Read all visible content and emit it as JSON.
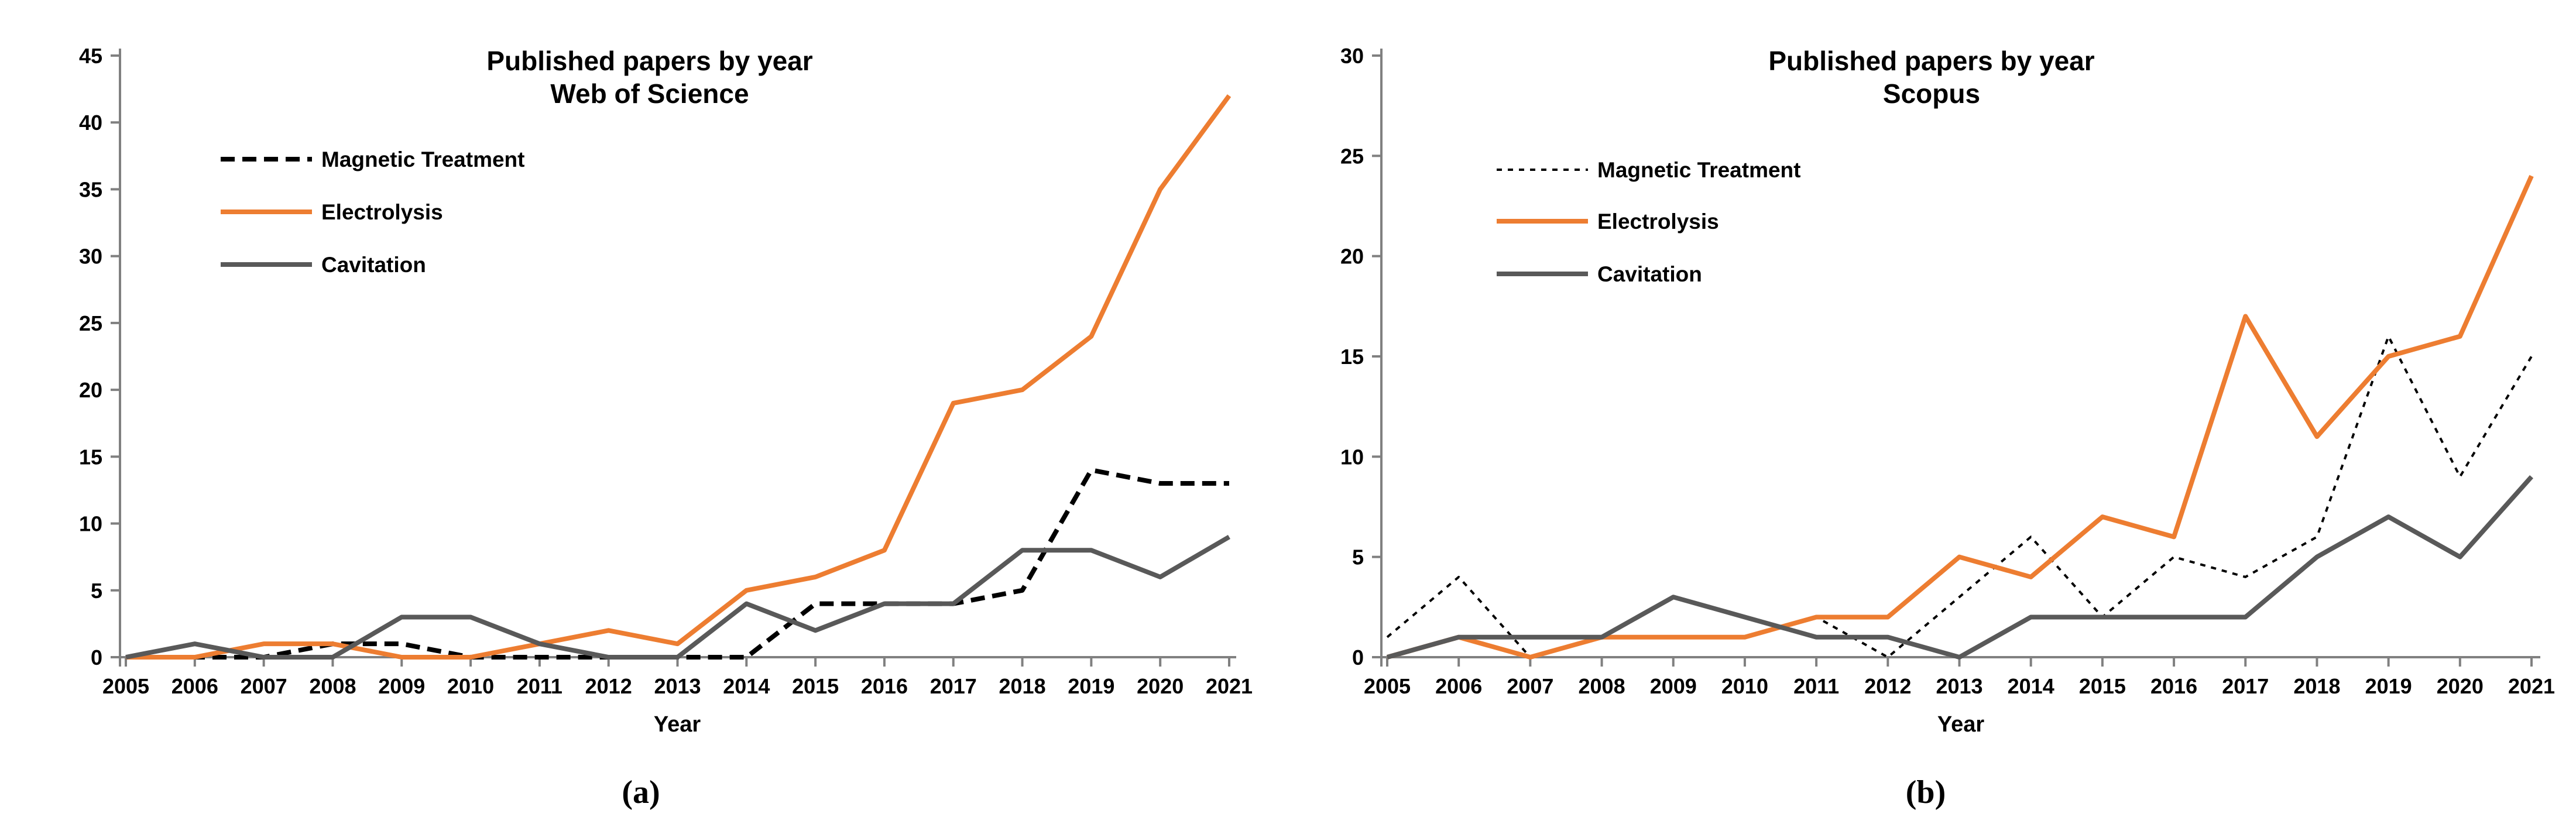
{
  "figure": {
    "background": "#FFFFFF",
    "text_color": "#000000",
    "axis_color": "#808080"
  },
  "captions": {
    "a": "(a)",
    "b": "(b)"
  },
  "chart_data": [
    {
      "type": "line",
      "title": "Published papers by year",
      "subtitle": "Web of Science",
      "xlabel": "Year",
      "ylim": [
        0,
        45
      ],
      "ytick_step": 5,
      "grid": false,
      "legend_position": "upper-left-inside",
      "x": [
        2005,
        2006,
        2007,
        2008,
        2009,
        2010,
        2011,
        2012,
        2013,
        2014,
        2015,
        2016,
        2017,
        2018,
        2019,
        2020,
        2021
      ],
      "series": [
        {
          "name": "Magnetic Treatment",
          "color": "#000000",
          "line_style": "dashed",
          "values": [
            0,
            0,
            0,
            1,
            1,
            0,
            0,
            0,
            0,
            0,
            4,
            4,
            4,
            5,
            14,
            13,
            13
          ]
        },
        {
          "name": "Electrolysis",
          "color": "#ED7D31",
          "line_style": "solid",
          "values": [
            0,
            0,
            1,
            1,
            0,
            0,
            1,
            2,
            1,
            5,
            6,
            8,
            19,
            20,
            24,
            35,
            42
          ]
        },
        {
          "name": "Cavitation",
          "color": "#595959",
          "line_style": "solid",
          "values": [
            0,
            1,
            0,
            0,
            3,
            3,
            1,
            0,
            0,
            4,
            2,
            4,
            4,
            8,
            8,
            6,
            9
          ]
        }
      ]
    },
    {
      "type": "line",
      "title": "Published papers by year",
      "subtitle": "Scopus",
      "xlabel": "Year",
      "ylim": [
        0,
        30
      ],
      "ytick_step": 5,
      "grid": false,
      "legend_position": "upper-left-inside",
      "x": [
        2005,
        2006,
        2007,
        2008,
        2009,
        2010,
        2011,
        2012,
        2013,
        2014,
        2015,
        2016,
        2017,
        2018,
        2019,
        2020,
        2021
      ],
      "series": [
        {
          "name": "Magnetic Treatment",
          "color": "#000000",
          "line_style": "dotted",
          "values": [
            1,
            4,
            0,
            1,
            1,
            1,
            2,
            0,
            3,
            6,
            2,
            5,
            4,
            6,
            16,
            9,
            15
          ]
        },
        {
          "name": "Electrolysis",
          "color": "#ED7D31",
          "line_style": "solid",
          "values": [
            0,
            1,
            0,
            1,
            1,
            1,
            2,
            2,
            5,
            4,
            7,
            6,
            17,
            11,
            15,
            16,
            24
          ]
        },
        {
          "name": "Cavitation",
          "color": "#595959",
          "line_style": "solid",
          "values": [
            0,
            1,
            1,
            1,
            3,
            2,
            1,
            1,
            0,
            2,
            2,
            2,
            2,
            5,
            7,
            5,
            9
          ]
        }
      ]
    }
  ]
}
